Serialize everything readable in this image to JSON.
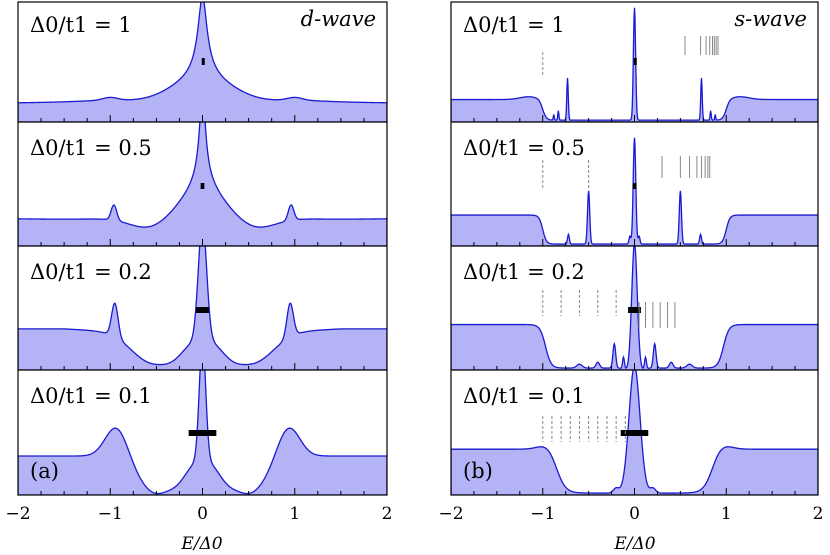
{
  "columns": [
    {
      "title": "d-wave",
      "panel_label": "(a)"
    },
    {
      "title": "s-wave",
      "panel_label": "(b)"
    }
  ],
  "rows": [
    {
      "label": "Δ0/t1 = 1",
      "ratio": "1"
    },
    {
      "label": "Δ0/t1 = 0.5",
      "ratio": "0.5"
    },
    {
      "label": "Δ0/t1 = 0.2",
      "ratio": "0.2"
    },
    {
      "label": "Δ0/t1 = 0.1",
      "ratio": "0.1"
    }
  ],
  "xaxis": {
    "title": "E/Δ0",
    "tick_labels": [
      "−2",
      "−1",
      "0",
      "1",
      "2"
    ],
    "ticks": [
      -2,
      -1,
      0,
      1,
      2
    ],
    "range": [
      -2,
      2
    ]
  },
  "colors": {
    "fill": "#b3b3f5",
    "line": "#1a1ad0",
    "marker": "#000000",
    "level_lines": "#888888"
  },
  "chart_data": {
    "type": "area",
    "description_axes": "density of states vs energy, 4 rows × 2 columns of panels",
    "xlim": [
      -2,
      2
    ],
    "panels": {
      "d-wave": [
        {
          "ratio": 1,
          "peak_positions": [
            -1,
            0,
            1
          ],
          "bar_halfwidth": 0.0
        },
        {
          "ratio": 0.5,
          "peak_positions": [
            -0.95,
            0,
            0.95
          ],
          "bar_halfwidth": 0.02
        },
        {
          "ratio": 0.2,
          "peak_positions": [
            -0.95,
            0,
            0.95
          ],
          "bar_halfwidth": 0.07
        },
        {
          "ratio": 0.1,
          "peak_positions": [
            -0.9,
            0,
            0.9
          ],
          "bar_halfwidth": 0.15
        }
      ],
      "s-wave": [
        {
          "ratio": 1,
          "peak_positions": [
            -0.73,
            0,
            0.73
          ],
          "gap_edges": [
            -1,
            1
          ],
          "bar_halfwidth": 0.0
        },
        {
          "ratio": 0.5,
          "peak_positions": [
            -0.5,
            0,
            0.5
          ],
          "gap_edges": [
            -1,
            1
          ],
          "bar_halfwidth": 0.02
        },
        {
          "ratio": 0.2,
          "peak_positions": [
            -0.22,
            0,
            0.22
          ],
          "gap_edges": [
            -0.95,
            0.95
          ],
          "bar_halfwidth": 0.07
        },
        {
          "ratio": 0.1,
          "peak_positions": [
            0
          ],
          "gap_edges": [
            -0.9,
            0.9
          ],
          "bar_halfwidth": 0.15
        }
      ]
    }
  }
}
